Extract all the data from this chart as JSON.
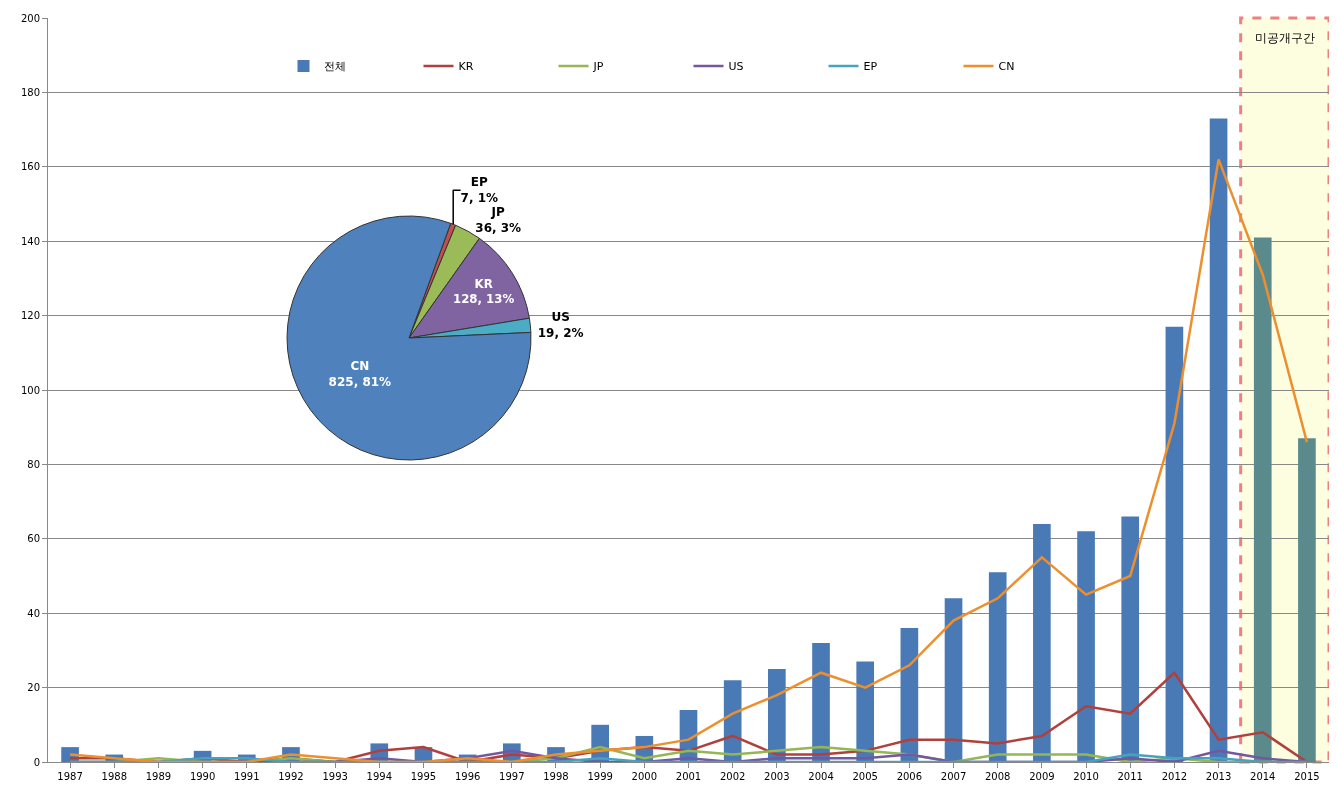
{
  "chart_data": [
    {
      "type": "bar",
      "categories": [
        "1987",
        "1988",
        "1989",
        "1990",
        "1991",
        "1992",
        "1993",
        "1994",
        "1995",
        "1996",
        "1997",
        "1998",
        "1999",
        "2000",
        "2001",
        "2002",
        "2003",
        "2004",
        "2005",
        "2006",
        "2007",
        "2008",
        "2009",
        "2010",
        "2011",
        "2012",
        "2013",
        "2014",
        "2015"
      ],
      "series": [
        {
          "name": "전체",
          "type": "bar",
          "colors": [
            "#4a7ab5",
            "#4a7ab5",
            "#4a7ab5",
            "#4a7ab5",
            "#4a7ab5",
            "#4a7ab5",
            "#4a7ab5",
            "#4a7ab5",
            "#4a7ab5",
            "#4a7ab5",
            "#4a7ab5",
            "#4a7ab5",
            "#4a7ab5",
            "#4a7ab5",
            "#4a7ab5",
            "#4a7ab5",
            "#4a7ab5",
            "#4a7ab5",
            "#4a7ab5",
            "#4a7ab5",
            "#4a7ab5",
            "#4a7ab5",
            "#4a7ab5",
            "#4a7ab5",
            "#4a7ab5",
            "#4a7ab5",
            "#4a7ab5",
            "#5b8a8c",
            "#5b8a8c"
          ],
          "values": [
            4,
            2,
            0,
            3,
            2,
            4,
            0,
            5,
            4,
            2,
            5,
            4,
            10,
            7,
            14,
            22,
            25,
            32,
            27,
            36,
            44,
            51,
            64,
            62,
            66,
            117,
            173,
            141,
            87
          ]
        },
        {
          "name": "KR",
          "type": "line",
          "color": "#b0403d",
          "values": [
            1,
            1,
            0,
            1,
            0,
            1,
            0,
            3,
            4,
            0,
            2,
            1,
            3,
            4,
            3,
            7,
            2,
            2,
            3,
            6,
            6,
            5,
            7,
            15,
            13,
            24,
            6,
            8,
            0
          ]
        },
        {
          "name": "JP",
          "type": "line",
          "color": "#94b653",
          "values": [
            0,
            0,
            1,
            0,
            0,
            1,
            0,
            0,
            0,
            0,
            0,
            1,
            4,
            1,
            3,
            2,
            3,
            4,
            3,
            2,
            0,
            2,
            2,
            2,
            0,
            1,
            0,
            0,
            0
          ]
        },
        {
          "name": "US",
          "type": "line",
          "color": "#7357a0",
          "values": [
            0,
            0,
            0,
            0,
            0,
            0,
            0,
            1,
            0,
            1,
            3,
            1,
            0,
            0,
            1,
            0,
            1,
            1,
            1,
            2,
            0,
            0,
            0,
            0,
            1,
            0,
            3,
            1,
            0
          ]
        },
        {
          "name": "EP",
          "type": "line",
          "color": "#45a3c0",
          "values": [
            0,
            0,
            0,
            1,
            1,
            0,
            0,
            0,
            0,
            0,
            0,
            0,
            1,
            0,
            0,
            0,
            0,
            0,
            0,
            0,
            0,
            0,
            0,
            0,
            2,
            1,
            1,
            0,
            0
          ]
        },
        {
          "name": "CN",
          "type": "line",
          "color": "#ee8f2e",
          "values": [
            2,
            1,
            0,
            0,
            0,
            2,
            1,
            0,
            0,
            1,
            0,
            2,
            3,
            4,
            6,
            13,
            18,
            24,
            20,
            26,
            38,
            44,
            55,
            45,
            50,
            91,
            162,
            131,
            86
          ]
        }
      ],
      "ylim": [
        0,
        200
      ],
      "yticks": [
        0,
        20,
        40,
        60,
        80,
        100,
        120,
        140,
        160,
        180,
        200
      ],
      "grid": "y",
      "legend": "top",
      "line_style": "solid",
      "marker": "none",
      "bands": [
        {
          "axis": "x",
          "from": "2014",
          "to": "2015",
          "label": "미공개구간",
          "color": "#fdfde0"
        }
      ]
    },
    {
      "type": "pie",
      "categories": [
        "EP",
        "JP",
        "KR",
        "US",
        "CN"
      ],
      "values": [
        7,
        36,
        128,
        19,
        825
      ],
      "colors": [
        "#c0504d",
        "#9bbb59",
        "#8064a2",
        "#4bacc6",
        "#4f81bd"
      ],
      "value_labels": [
        "7, 1%",
        "36, 3%",
        "128, 13%",
        "19, 2%",
        "825, 81%"
      ]
    }
  ]
}
